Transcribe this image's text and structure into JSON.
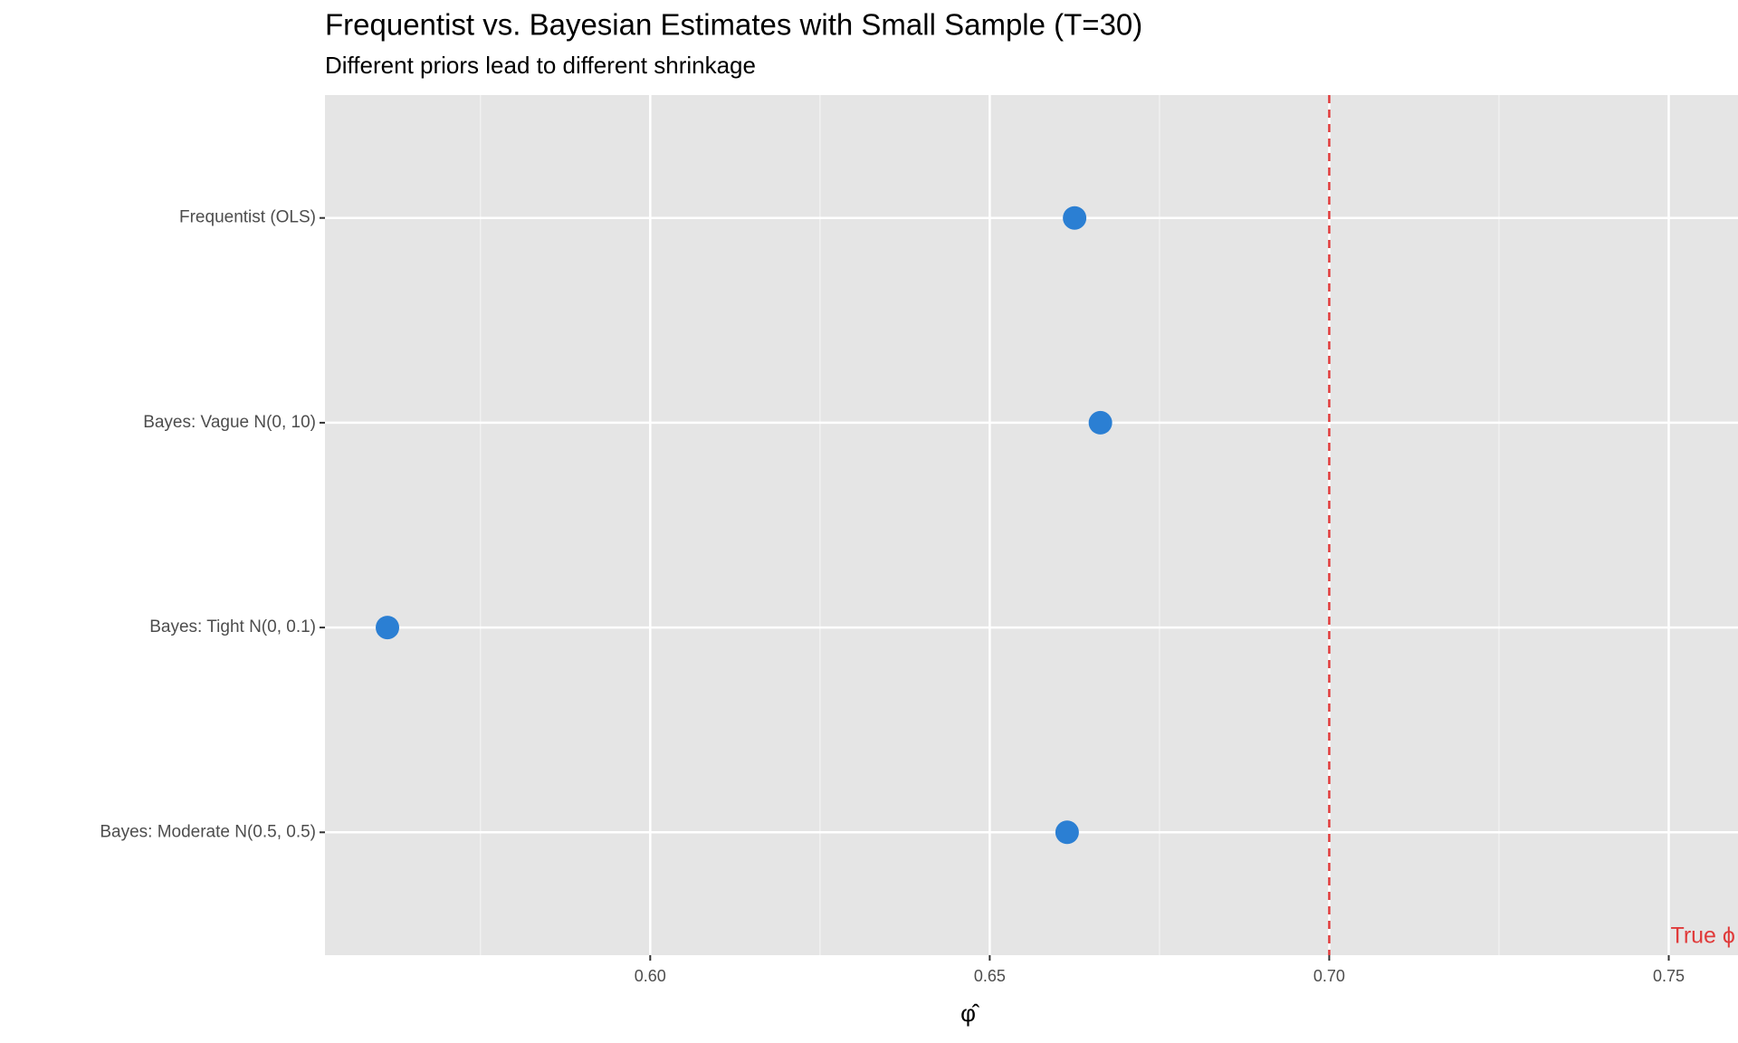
{
  "chart_data": {
    "type": "dot",
    "title": "Frequentist vs. Bayesian Estimates with Small Sample (T=30)",
    "subtitle": "Different priors lead to different shrinkage",
    "x_label": "φ̂",
    "categories": [
      "Frequentist (OLS)",
      "Bayes: Vague N(0, 10)",
      "Bayes: Tight N(0, 0.1)",
      "Bayes: Moderate N(0.5, 0.5)"
    ],
    "values": [
      0.6625,
      0.6663,
      0.5613,
      0.6614
    ],
    "color": "#2b7fd3",
    "xlim": [
      0.5521,
      0.7602
    ],
    "xticks": [
      {
        "value": 0.6,
        "label": "0.60"
      },
      {
        "value": 0.65,
        "label": "0.65"
      },
      {
        "value": 0.7,
        "label": "0.70"
      },
      {
        "value": 0.75,
        "label": "0.75"
      }
    ],
    "grid": true,
    "reference_line": {
      "value": 0.7,
      "label": "True ϕ",
      "color": "#e03a3a"
    }
  }
}
